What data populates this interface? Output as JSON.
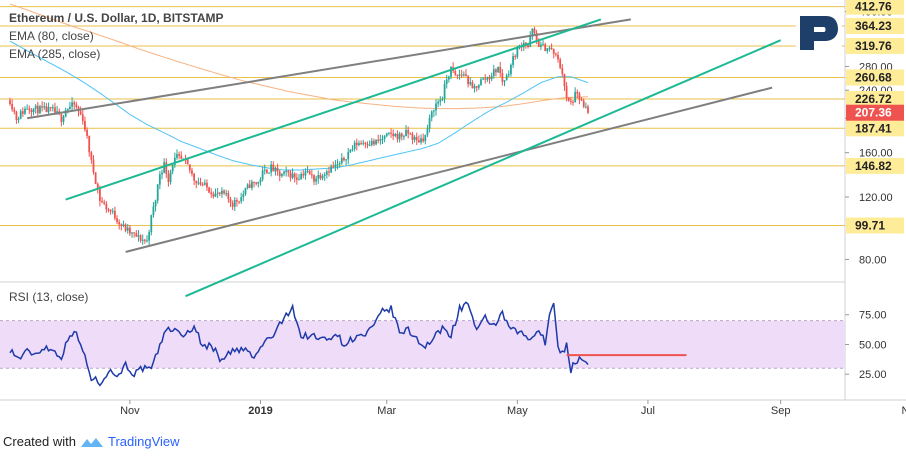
{
  "header": {
    "title": "Ethereum / U.S. Dollar, 1D, BITSTAMP",
    "ema80_label": "EMA (80, close)",
    "ema285_label": "EMA (285, close)"
  },
  "rsi_panel": {
    "label": "RSI (13, close)"
  },
  "footer": {
    "created_with": "Created with",
    "brand": "TradingView"
  },
  "colors": {
    "bull": "#26a69a",
    "bear": "#ef5350",
    "ema80": "#4fc3f7",
    "ema285": "#f7b283",
    "grey_line": "#7f7f7f",
    "green_line": "#1db994",
    "level": "#e8c24a",
    "price_badge": "#ef5350",
    "level_badge": "#ffec99",
    "rsi_line": "#1e3aa8",
    "rsi_band": "#efdcf9",
    "red_level": "#ef5350",
    "logo": "#1f3f6b"
  },
  "chart_data": [
    {
      "type": "candlestick",
      "title": "Ethereum / U.S. Dollar, 1D, BITSTAMP",
      "ylim": [
        70,
        420
      ],
      "y_ticks": [
        80,
        120,
        160,
        200,
        240,
        280,
        400
      ],
      "x_ticks": [
        "Nov",
        "2019",
        "Mar",
        "May",
        "Jul",
        "Sep",
        "Nov"
      ],
      "levels": [
        412.76,
        364.23,
        319.76,
        260.68,
        226.72,
        187.41,
        146.82,
        99.71
      ],
      "last_price": 207.36,
      "anchors": [
        [
          0,
          225
        ],
        [
          3,
          200
        ],
        [
          8,
          215
        ],
        [
          12,
          212
        ],
        [
          20,
          210
        ],
        [
          24,
          200
        ],
        [
          26,
          212
        ],
        [
          30,
          218
        ],
        [
          34,
          200
        ],
        [
          38,
          150
        ],
        [
          42,
          118
        ],
        [
          45,
          112
        ],
        [
          48,
          108
        ],
        [
          52,
          100
        ],
        [
          56,
          95
        ],
        [
          60,
          92
        ],
        [
          64,
          90
        ],
        [
          66,
          105
        ],
        [
          68,
          118
        ],
        [
          70,
          140
        ],
        [
          72,
          148
        ],
        [
          74,
          135
        ],
        [
          76,
          150
        ],
        [
          78,
          155
        ],
        [
          82,
          150
        ],
        [
          86,
          135
        ],
        [
          90,
          130
        ],
        [
          96,
          122
        ],
        [
          100,
          122
        ],
        [
          104,
          115
        ],
        [
          108,
          120
        ],
        [
          112,
          130
        ],
        [
          116,
          132
        ],
        [
          118,
          140
        ],
        [
          122,
          145
        ],
        [
          126,
          138
        ],
        [
          130,
          140
        ],
        [
          134,
          136
        ],
        [
          138,
          142
        ],
        [
          142,
          135
        ],
        [
          146,
          140
        ],
        [
          150,
          145
        ],
        [
          154,
          148
        ],
        [
          158,
          160
        ],
        [
          162,
          170
        ],
        [
          166,
          172
        ],
        [
          170,
          170
        ],
        [
          174,
          175
        ],
        [
          178,
          180
        ],
        [
          182,
          178
        ],
        [
          186,
          182
        ],
        [
          190,
          172
        ],
        [
          194,
          178
        ],
        [
          198,
          215
        ],
        [
          202,
          230
        ],
        [
          204,
          258
        ],
        [
          206,
          275
        ],
        [
          208,
          262
        ],
        [
          212,
          268
        ],
        [
          216,
          240
        ],
        [
          220,
          255
        ],
        [
          224,
          262
        ],
        [
          228,
          278
        ],
        [
          230,
          255
        ],
        [
          232,
          262
        ],
        [
          236,
          305
        ],
        [
          240,
          330
        ],
        [
          242,
          318
        ],
        [
          244,
          355
        ],
        [
          246,
          330
        ],
        [
          248,
          318
        ],
        [
          252,
          315
        ],
        [
          254,
          305
        ],
        [
          256,
          290
        ],
        [
          258,
          270
        ],
        [
          260,
          225
        ],
        [
          262,
          220
        ],
        [
          264,
          232
        ],
        [
          266,
          228
        ],
        [
          268,
          215
        ],
        [
          270,
          207.36
        ]
      ],
      "ema80_anchors": [
        [
          0,
          330
        ],
        [
          8,
          310
        ],
        [
          16,
          292
        ],
        [
          24,
          275
        ],
        [
          32,
          258
        ],
        [
          40,
          240
        ],
        [
          48,
          222
        ],
        [
          56,
          205
        ],
        [
          64,
          192
        ],
        [
          72,
          182
        ],
        [
          80,
          172
        ],
        [
          88,
          165
        ],
        [
          96,
          158
        ],
        [
          104,
          152
        ],
        [
          112,
          148
        ],
        [
          120,
          145
        ],
        [
          128,
          143
        ],
        [
          136,
          143
        ],
        [
          144,
          144
        ],
        [
          152,
          145
        ],
        [
          160,
          148
        ],
        [
          168,
          152
        ],
        [
          176,
          156
        ],
        [
          184,
          160
        ],
        [
          192,
          164
        ],
        [
          200,
          170
        ],
        [
          208,
          182
        ],
        [
          216,
          196
        ],
        [
          224,
          210
        ],
        [
          232,
          222
        ],
        [
          240,
          236
        ],
        [
          248,
          252
        ],
        [
          256,
          262
        ],
        [
          262,
          262
        ],
        [
          270,
          252
        ]
      ],
      "ema285_anchors": [
        [
          0,
          420
        ],
        [
          10,
          400
        ],
        [
          20,
          380
        ],
        [
          30,
          362
        ],
        [
          40,
          346
        ],
        [
          50,
          330
        ],
        [
          60,
          314
        ],
        [
          70,
          300
        ],
        [
          80,
          287
        ],
        [
          90,
          275
        ],
        [
          100,
          264
        ],
        [
          110,
          254
        ],
        [
          120,
          246
        ],
        [
          130,
          238
        ],
        [
          140,
          232
        ],
        [
          150,
          226
        ],
        [
          160,
          222
        ],
        [
          170,
          219
        ],
        [
          180,
          216
        ],
        [
          190,
          214
        ],
        [
          200,
          213
        ],
        [
          210,
          213
        ],
        [
          220,
          214
        ],
        [
          230,
          216
        ],
        [
          240,
          220
        ],
        [
          250,
          225
        ],
        [
          260,
          229
        ],
        [
          270,
          230
        ]
      ],
      "trendlines": [
        {
          "name": "upper-grey-channel",
          "color": "grey",
          "from": [
            8,
            200
          ],
          "to": [
            290,
            380
          ]
        },
        {
          "name": "lower-grey-channel",
          "color": "grey",
          "from": [
            54,
            84
          ],
          "to": [
            356,
            244
          ]
        },
        {
          "name": "upper-green-channel",
          "color": "green",
          "from": [
            26,
            118
          ],
          "to": [
            276,
            380
          ]
        },
        {
          "name": "lower-green-channel",
          "color": "green",
          "from": [
            82,
            63
          ],
          "to": [
            360,
            332
          ]
        }
      ]
    },
    {
      "type": "line",
      "title": "RSI (13, close)",
      "ylim": [
        5,
        100
      ],
      "y_ticks": [
        25,
        50,
        75
      ],
      "band": [
        30,
        70
      ],
      "red_level": {
        "value": 41,
        "x_range": [
          260,
          316
        ]
      },
      "anchors": [
        [
          0,
          46
        ],
        [
          4,
          38
        ],
        [
          8,
          44
        ],
        [
          12,
          42
        ],
        [
          16,
          48
        ],
        [
          20,
          45
        ],
        [
          24,
          40
        ],
        [
          28,
          58
        ],
        [
          30,
          62
        ],
        [
          34,
          45
        ],
        [
          38,
          22
        ],
        [
          42,
          18
        ],
        [
          46,
          28
        ],
        [
          50,
          24
        ],
        [
          54,
          33
        ],
        [
          58,
          25
        ],
        [
          62,
          30
        ],
        [
          66,
          28
        ],
        [
          70,
          50
        ],
        [
          74,
          65
        ],
        [
          78,
          60
        ],
        [
          82,
          58
        ],
        [
          86,
          66
        ],
        [
          90,
          48
        ],
        [
          94,
          50
        ],
        [
          98,
          38
        ],
        [
          104,
          44
        ],
        [
          110,
          46
        ],
        [
          114,
          38
        ],
        [
          118,
          50
        ],
        [
          124,
          60
        ],
        [
          128,
          72
        ],
        [
          132,
          82
        ],
        [
          136,
          56
        ],
        [
          140,
          58
        ],
        [
          144,
          55
        ],
        [
          148,
          54
        ],
        [
          152,
          60
        ],
        [
          156,
          50
        ],
        [
          160,
          55
        ],
        [
          166,
          58
        ],
        [
          170,
          65
        ],
        [
          174,
          78
        ],
        [
          178,
          80
        ],
        [
          182,
          60
        ],
        [
          186,
          62
        ],
        [
          190,
          55
        ],
        [
          194,
          48
        ],
        [
          198,
          55
        ],
        [
          202,
          64
        ],
        [
          206,
          58
        ],
        [
          210,
          80
        ],
        [
          214,
          85
        ],
        [
          218,
          60
        ],
        [
          222,
          72
        ],
        [
          226,
          66
        ],
        [
          230,
          75
        ],
        [
          234,
          62
        ],
        [
          238,
          60
        ],
        [
          242,
          55
        ],
        [
          246,
          58
        ],
        [
          248,
          60
        ],
        [
          250,
          52
        ],
        [
          252,
          78
        ],
        [
          254,
          82
        ],
        [
          256,
          50
        ],
        [
          258,
          42
        ],
        [
          260,
          50
        ],
        [
          262,
          28
        ],
        [
          264,
          36
        ],
        [
          266,
          38
        ],
        [
          268,
          34
        ],
        [
          270,
          34
        ]
      ]
    }
  ]
}
